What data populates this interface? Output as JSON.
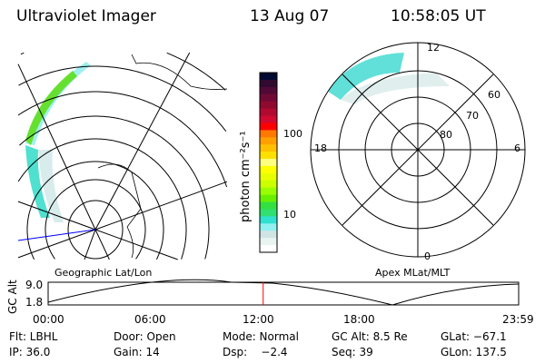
{
  "header": {
    "instrument": "Ultraviolet Imager",
    "date": "13 Aug 07",
    "time": "10:58:05 UT"
  },
  "colorbar": {
    "label": "photon cm⁻²s⁻¹",
    "tick_100": "100",
    "tick_10": "10",
    "colors": [
      "#000a30",
      "#300a30",
      "#500a35",
      "#700a35",
      "#900a30",
      "#b00a30",
      "#d00a30",
      "#ff0000",
      "#ff7800",
      "#ffa000",
      "#ffc000",
      "#ffe000",
      "#ffff80",
      "#ffff00",
      "#e8ff00",
      "#ccff00",
      "#99ff00",
      "#66f000",
      "#33e040",
      "#30e070",
      "#30e0d0",
      "#90f0f0",
      "#d0e4e4",
      "#e8f4f0",
      "#ffffff"
    ]
  },
  "left_map": {
    "caption": "Geographic Lat/Lon"
  },
  "right_map": {
    "caption": "Apex MLat/MLT",
    "labels": {
      "top": "12",
      "left": "18",
      "right": "6",
      "bottom": "0",
      "r60": "60",
      "r70": "70",
      "r80": "80"
    }
  },
  "altitude_plot": {
    "ylabel": "GC Alt",
    "ymax": "9.0",
    "ymin": "1.8",
    "xticks": [
      "00:00",
      "06:00",
      "12:00",
      "18:00",
      "23:59"
    ],
    "current_time_fraction": 0.457,
    "marker_color": "#ff0000"
  },
  "info": {
    "filter": "Flt: LBHL",
    "door": "Door: Open",
    "mode": "Mode: Normal",
    "gc_alt": "GC Alt: 8.5 Re",
    "glat": "GLat: −67.1",
    "ip": "IP: 36.0",
    "gain": "Gain: 14",
    "dsp": "Dsp:    −2.4",
    "seq": "Seq: 39",
    "glon": "GLon: 137.5"
  }
}
